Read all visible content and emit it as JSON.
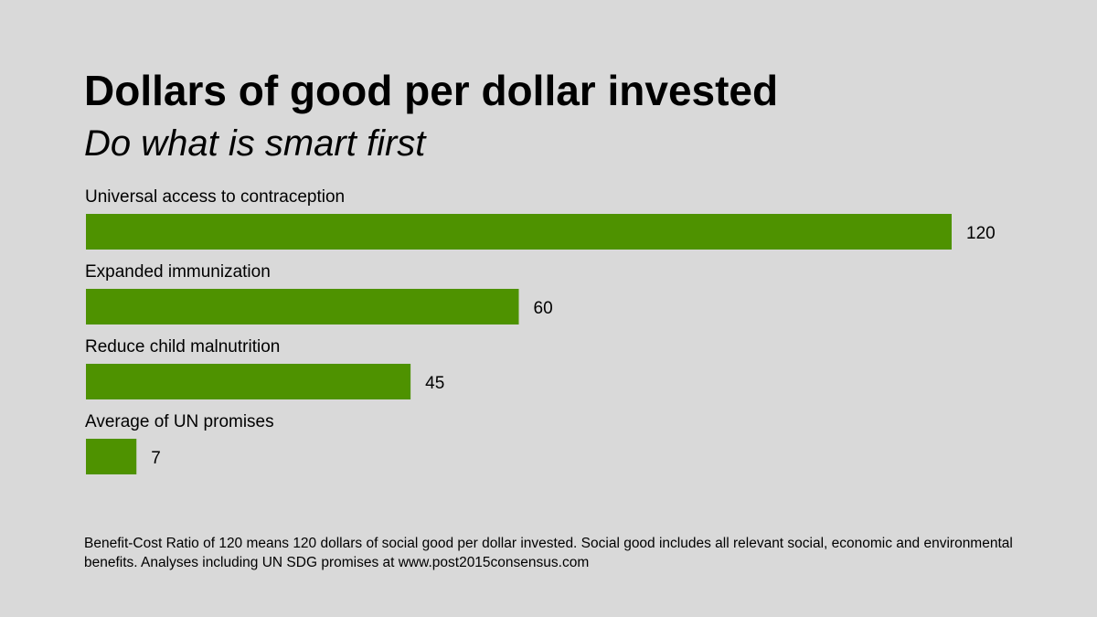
{
  "slide": {
    "title": "Dollars of good per dollar invested",
    "subtitle": "Do what is smart first",
    "footnote": "Benefit-Cost Ratio of 120 means 120 dollars of social good per dollar invested. Social good includes all relevant social, economic and environmental benefits. Analyses including UN SDG promises at www.post2015consensus.com"
  },
  "colors": {
    "background": "#d9d9d9",
    "bar": "#4e9200"
  },
  "chart_data": {
    "type": "bar",
    "orientation": "horizontal",
    "title": "Dollars of good per dollar invested",
    "subtitle": "Do what is smart first",
    "categories": [
      "Universal access to contraception",
      "Expanded immunization",
      "Reduce child malnutrition",
      "Average of UN promises"
    ],
    "values": [
      120,
      60,
      45,
      7
    ],
    "value_labels": [
      "120",
      "60",
      "45",
      "7"
    ],
    "xlabel": "",
    "ylabel": "",
    "xlim": [
      0,
      120
    ],
    "grid": false,
    "legend": "none"
  }
}
